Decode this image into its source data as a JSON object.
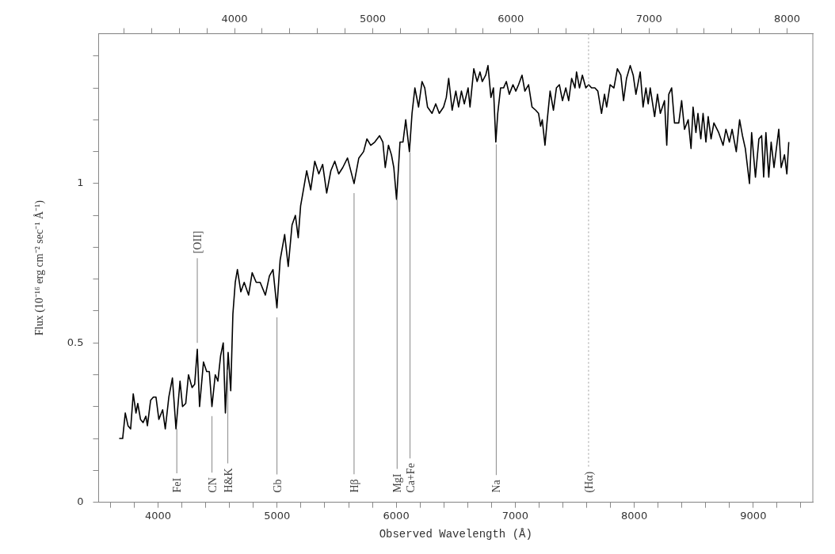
{
  "chart_data": {
    "type": "line",
    "xlabel": "Observed Wavelength (Å)",
    "ylabel": "Flux (10⁻¹⁶ erg cm⁻² sec⁻¹ Å⁻¹)",
    "xlim": [
      3500,
      9500
    ],
    "ylim": [
      0,
      1.47
    ],
    "xticks": [
      {
        "value": 3600,
        "label": null
      },
      {
        "value": 3800,
        "label": null
      },
      4000,
      {
        "value": 4200,
        "label": null
      },
      {
        "value": 4400,
        "label": null
      },
      {
        "value": 4600,
        "label": null
      },
      {
        "value": 4800,
        "label": null
      },
      5000,
      {
        "value": 5200,
        "label": null
      },
      {
        "value": 5400,
        "label": null
      },
      {
        "value": 5600,
        "label": null
      },
      {
        "value": 5800,
        "label": null
      },
      6000,
      {
        "value": 6200,
        "label": null
      },
      {
        "value": 6400,
        "label": null
      },
      {
        "value": 6600,
        "label": null
      },
      {
        "value": 6800,
        "label": null
      },
      7000,
      {
        "value": 7200,
        "label": null
      },
      {
        "value": 7400,
        "label": null
      },
      {
        "value": 7600,
        "label": null
      },
      {
        "value": 7800,
        "label": null
      },
      8000,
      {
        "value": 8200,
        "label": null
      },
      {
        "value": 8400,
        "label": null
      },
      {
        "value": 8600,
        "label": null
      },
      {
        "value": 8800,
        "label": null
      },
      9000,
      {
        "value": 9200,
        "label": null
      },
      {
        "value": 9400,
        "label": null
      }
    ],
    "x2lim": [
      3016,
      8186
    ],
    "x2ticks": [
      {
        "value": 3200,
        "label": null
      },
      {
        "value": 3400,
        "label": null
      },
      {
        "value": 3600,
        "label": null
      },
      {
        "value": 3800,
        "label": null
      },
      4000,
      {
        "value": 4200,
        "label": null
      },
      {
        "value": 4400,
        "label": null
      },
      {
        "value": 4600,
        "label": null
      },
      {
        "value": 4800,
        "label": null
      },
      5000,
      {
        "value": 5200,
        "label": null
      },
      {
        "value": 5400,
        "label": null
      },
      {
        "value": 5600,
        "label": null
      },
      {
        "value": 5800,
        "label": null
      },
      6000,
      {
        "value": 6200,
        "label": null
      },
      {
        "value": 6400,
        "label": null
      },
      {
        "value": 6600,
        "label": null
      },
      {
        "value": 6800,
        "label": null
      },
      7000,
      {
        "value": 7200,
        "label": null
      },
      {
        "value": 7400,
        "label": null
      },
      {
        "value": 7600,
        "label": null
      },
      {
        "value": 7800,
        "label": null
      },
      8000
    ],
    "yticks": [
      0,
      {
        "value": 0.1,
        "label": null
      },
      {
        "value": 0.2,
        "label": null
      },
      {
        "value": 0.3,
        "label": null
      },
      {
        "value": 0.4,
        "label": null
      },
      0.5,
      {
        "value": 0.6,
        "label": null
      },
      {
        "value": 0.7,
        "label": null
      },
      {
        "value": 0.8,
        "label": null
      },
      {
        "value": 0.9,
        "label": null
      },
      1,
      {
        "value": 1.1,
        "label": null
      },
      {
        "value": 1.2,
        "label": null
      },
      {
        "value": 1.3,
        "label": null
      },
      {
        "value": 1.4,
        "label": null
      }
    ],
    "marker": "none",
    "line_style": "solid",
    "series": [
      {
        "color": "#000000",
        "x": [
          3673,
          3702,
          3724,
          3747,
          3769,
          3791,
          3814,
          3829,
          3852,
          3874,
          3897,
          3910,
          3937,
          3960,
          3982,
          4006,
          4038,
          4060,
          4090,
          4120,
          4150,
          4184,
          4205,
          4232,
          4255,
          4285,
          4307,
          4329,
          4348,
          4381,
          4408,
          4430,
          4452,
          4480,
          4502,
          4525,
          4547,
          4565,
          4588,
          4610,
          4628,
          4648,
          4666,
          4695,
          4723,
          4760,
          4790,
          4824,
          4857,
          4901,
          4935,
          4965,
          4998,
          5025,
          5063,
          5093,
          5125,
          5153,
          5177,
          5197,
          5216,
          5248,
          5282,
          5316,
          5350,
          5382,
          5416,
          5451,
          5484,
          5517,
          5551,
          5591,
          5646,
          5686,
          5726,
          5754,
          5786,
          5820,
          5860,
          5888,
          5908,
          5935,
          5960,
          5980,
          6003,
          6032,
          6057,
          6080,
          6111,
          6133,
          6157,
          6188,
          6217,
          6240,
          6263,
          6301,
          6332,
          6362,
          6398,
          6421,
          6441,
          6470,
          6501,
          6524,
          6548,
          6572,
          6604,
          6620,
          6652,
          6680,
          6704,
          6723,
          6752,
          6771,
          6796,
          6817,
          6837,
          6853,
          6877,
          6902,
          6925,
          6950,
          6981,
          7005,
          7028,
          7057,
          7081,
          7112,
          7141,
          7172,
          7196,
          7213,
          7227,
          7250,
          7269,
          7293,
          7321,
          7346,
          7371,
          7397,
          7425,
          7449,
          7474,
          7502,
          7515,
          7540,
          7564,
          7593,
          7617,
          7641,
          7669,
          7694,
          7725,
          7750,
          7768,
          7797,
          7829,
          7858,
          7887,
          7910,
          7935,
          7966,
          7991,
          8014,
          8050,
          8074,
          8098,
          8117,
          8134,
          8171,
          8195,
          8219,
          8254,
          8273,
          8290,
          8314,
          8338,
          8374,
          8398,
          8422,
          8453,
          8477,
          8494,
          8518,
          8535,
          8559,
          8578,
          8602,
          8621,
          8645,
          8669,
          8709,
          8746,
          8770,
          8799,
          8822,
          8857,
          8885,
          8909,
          8933,
          8968,
          8986,
          9018,
          9047,
          9070,
          9087,
          9106,
          9130,
          9150,
          9174,
          9214,
          9234,
          9262,
          9282,
          9298
        ],
        "values": [
          0.2,
          0.2,
          0.28,
          0.24,
          0.23,
          0.34,
          0.28,
          0.31,
          0.26,
          0.25,
          0.27,
          0.24,
          0.32,
          0.33,
          0.33,
          0.26,
          0.29,
          0.23,
          0.33,
          0.39,
          0.23,
          0.38,
          0.3,
          0.31,
          0.4,
          0.36,
          0.37,
          0.48,
          0.3,
          0.44,
          0.41,
          0.41,
          0.3,
          0.4,
          0.38,
          0.46,
          0.5,
          0.28,
          0.47,
          0.35,
          0.59,
          0.69,
          0.73,
          0.66,
          0.69,
          0.65,
          0.72,
          0.69,
          0.69,
          0.65,
          0.71,
          0.73,
          0.61,
          0.76,
          0.84,
          0.74,
          0.87,
          0.9,
          0.83,
          0.93,
          0.97,
          1.04,
          0.98,
          1.07,
          1.03,
          1.06,
          0.97,
          1.04,
          1.07,
          1.03,
          1.05,
          1.08,
          1.0,
          1.08,
          1.1,
          1.14,
          1.12,
          1.13,
          1.15,
          1.13,
          1.05,
          1.12,
          1.09,
          1.05,
          0.95,
          1.13,
          1.13,
          1.2,
          1.1,
          1.22,
          1.3,
          1.24,
          1.32,
          1.3,
          1.24,
          1.22,
          1.25,
          1.22,
          1.24,
          1.27,
          1.33,
          1.23,
          1.29,
          1.24,
          1.29,
          1.25,
          1.3,
          1.24,
          1.36,
          1.32,
          1.35,
          1.32,
          1.34,
          1.37,
          1.27,
          1.3,
          1.13,
          1.22,
          1.3,
          1.3,
          1.32,
          1.28,
          1.31,
          1.29,
          1.31,
          1.34,
          1.29,
          1.31,
          1.24,
          1.23,
          1.22,
          1.18,
          1.2,
          1.12,
          1.2,
          1.29,
          1.23,
          1.3,
          1.31,
          1.26,
          1.3,
          1.26,
          1.33,
          1.3,
          1.35,
          1.3,
          1.34,
          1.3,
          1.31,
          1.3,
          1.3,
          1.29,
          1.22,
          1.28,
          1.24,
          1.31,
          1.3,
          1.36,
          1.34,
          1.26,
          1.33,
          1.37,
          1.34,
          1.28,
          1.35,
          1.24,
          1.3,
          1.25,
          1.3,
          1.21,
          1.28,
          1.22,
          1.26,
          1.12,
          1.28,
          1.3,
          1.19,
          1.19,
          1.26,
          1.17,
          1.2,
          1.11,
          1.24,
          1.16,
          1.22,
          1.14,
          1.22,
          1.13,
          1.21,
          1.14,
          1.19,
          1.16,
          1.12,
          1.17,
          1.13,
          1.17,
          1.1,
          1.2,
          1.15,
          1.11,
          1.0,
          1.16,
          1.02,
          1.14,
          1.15,
          1.02,
          1.16,
          1.02,
          1.13,
          1.05,
          1.17,
          1.05,
          1.09,
          1.03,
          1.13
        ]
      }
    ],
    "ref_lines": [
      {
        "axis": "x",
        "value": 4157,
        "label": "FeI",
        "line_style": "solid",
        "color": "#999999"
      },
      {
        "axis": "x",
        "value": 4452,
        "label": "CN",
        "line_style": "solid",
        "color": "#999999"
      },
      {
        "axis": "x",
        "value": 4585,
        "label": "H&K",
        "line_style": "solid",
        "color": "#999999"
      },
      {
        "axis": "x",
        "value": 4329,
        "label": "[OII]",
        "line_style": "solid",
        "color": "#999999"
      },
      {
        "axis": "x",
        "value": 4998,
        "label": "Gb",
        "line_style": "solid",
        "color": "#999999"
      },
      {
        "axis": "x",
        "value": 5646,
        "label": "Hβ",
        "line_style": "solid",
        "color": "#999999"
      },
      {
        "axis": "x",
        "value": 6008,
        "label": "MgI",
        "line_style": "solid",
        "color": "#999999"
      },
      {
        "axis": "x",
        "value": 6116,
        "label": "Ca+Fe",
        "line_style": "solid",
        "color": "#999999"
      },
      {
        "axis": "x",
        "value": 6841,
        "label": "Na",
        "line_style": "solid",
        "color": "#999999"
      },
      {
        "axis": "x",
        "value": 7616,
        "label": "(Hα)",
        "line_style": "dotted",
        "color": "#aaaaaa"
      }
    ]
  }
}
